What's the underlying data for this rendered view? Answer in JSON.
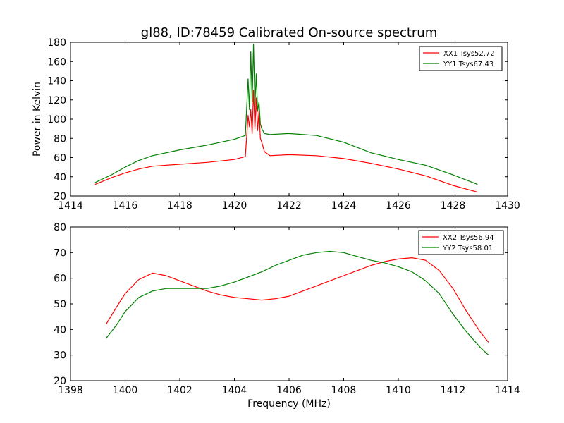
{
  "figure": {
    "title": "gl88, ID:78459 Calibrated On-source spectrum",
    "ylabel": "Power in Kelvin",
    "xlabel": "Frequency (MHz)"
  },
  "colors": {
    "red": "#ff0000",
    "green": "#008000"
  },
  "chart_data": [
    {
      "type": "line",
      "title": "gl88, ID:78459 Calibrated On-source spectrum",
      "xlabel": "",
      "ylabel": "Power in Kelvin",
      "xlim": [
        1414,
        1430
      ],
      "ylim": [
        20,
        180
      ],
      "xticks": [
        1414,
        1416,
        1418,
        1420,
        1422,
        1424,
        1426,
        1428,
        1430
      ],
      "yticks": [
        20,
        40,
        60,
        80,
        100,
        120,
        140,
        160,
        180
      ],
      "legend": "top-right",
      "grid": false,
      "series": [
        {
          "name": "XX1 Tsys52.72",
          "color": "#ff0000",
          "x": [
            1414.9,
            1415.5,
            1416.0,
            1416.5,
            1417.0,
            1418.0,
            1419.0,
            1420.0,
            1420.4,
            1420.5,
            1420.55,
            1420.6,
            1420.65,
            1420.7,
            1420.75,
            1420.8,
            1420.85,
            1420.9,
            1420.95,
            1421.0,
            1421.1,
            1421.3,
            1422.0,
            1423.0,
            1424.0,
            1425.0,
            1426.0,
            1427.0,
            1428.0,
            1428.9
          ],
          "values": [
            32,
            39,
            44,
            48,
            51,
            53,
            55,
            58,
            61,
            104,
            92,
            110,
            85,
            130,
            90,
            122,
            88,
            108,
            80,
            76,
            66,
            62,
            63,
            62,
            59,
            54,
            48,
            41,
            31,
            24
          ]
        },
        {
          "name": "YY1 Tsys67.43",
          "color": "#008000",
          "x": [
            1414.9,
            1415.5,
            1416.0,
            1416.5,
            1417.0,
            1418.0,
            1419.0,
            1420.0,
            1420.4,
            1420.5,
            1420.55,
            1420.6,
            1420.65,
            1420.7,
            1420.75,
            1420.8,
            1420.85,
            1420.9,
            1420.95,
            1421.0,
            1421.1,
            1421.3,
            1422.0,
            1423.0,
            1424.0,
            1425.0,
            1426.0,
            1427.0,
            1428.0,
            1428.9
          ],
          "values": [
            34,
            42,
            50,
            57,
            62,
            68,
            73,
            79,
            83,
            142,
            110,
            170,
            118,
            178,
            115,
            147,
            108,
            118,
            95,
            90,
            85,
            84,
            85,
            83,
            76,
            65,
            58,
            52,
            42,
            32
          ]
        }
      ]
    },
    {
      "type": "line",
      "title": "",
      "xlabel": "Frequency (MHz)",
      "ylabel": "",
      "xlim": [
        1398,
        1414
      ],
      "ylim": [
        20,
        80
      ],
      "xticks": [
        1398,
        1400,
        1402,
        1404,
        1406,
        1408,
        1410,
        1412,
        1414
      ],
      "yticks": [
        20,
        30,
        40,
        50,
        60,
        70,
        80
      ],
      "legend": "top-right",
      "grid": false,
      "series": [
        {
          "name": "XX2 Tsys56.94",
          "color": "#ff0000",
          "x": [
            1399.3,
            1399.7,
            1400.0,
            1400.5,
            1401.0,
            1401.5,
            1402.0,
            1402.5,
            1403.0,
            1403.5,
            1404.0,
            1404.5,
            1405.0,
            1405.5,
            1406.0,
            1406.5,
            1407.0,
            1407.5,
            1408.0,
            1408.5,
            1409.0,
            1409.5,
            1410.0,
            1410.5,
            1411.0,
            1411.5,
            1412.0,
            1412.5,
            1413.0,
            1413.3
          ],
          "values": [
            42,
            49,
            54,
            59.5,
            62,
            61,
            59,
            57,
            55,
            53.5,
            52.5,
            52,
            51.5,
            52,
            53,
            55,
            57,
            59,
            61,
            63,
            65,
            66.5,
            67.5,
            68,
            67,
            63,
            56,
            47,
            39,
            35
          ]
        },
        {
          "name": "YY2 Tsys58.01",
          "color": "#008000",
          "x": [
            1399.3,
            1399.7,
            1400.0,
            1400.5,
            1401.0,
            1401.5,
            1402.0,
            1402.5,
            1403.0,
            1403.5,
            1404.0,
            1404.5,
            1405.0,
            1405.5,
            1406.0,
            1406.5,
            1407.0,
            1407.5,
            1408.0,
            1408.5,
            1409.0,
            1409.5,
            1410.0,
            1410.5,
            1411.0,
            1411.5,
            1412.0,
            1412.5,
            1413.0,
            1413.3
          ],
          "values": [
            36.5,
            42,
            47,
            52.5,
            55,
            56,
            56,
            56,
            56,
            57,
            58.5,
            60.5,
            62.5,
            65,
            67,
            69,
            70,
            70.5,
            70,
            68.5,
            67,
            66,
            64.5,
            62.5,
            59,
            54,
            46,
            39,
            33,
            30
          ]
        }
      ]
    }
  ]
}
